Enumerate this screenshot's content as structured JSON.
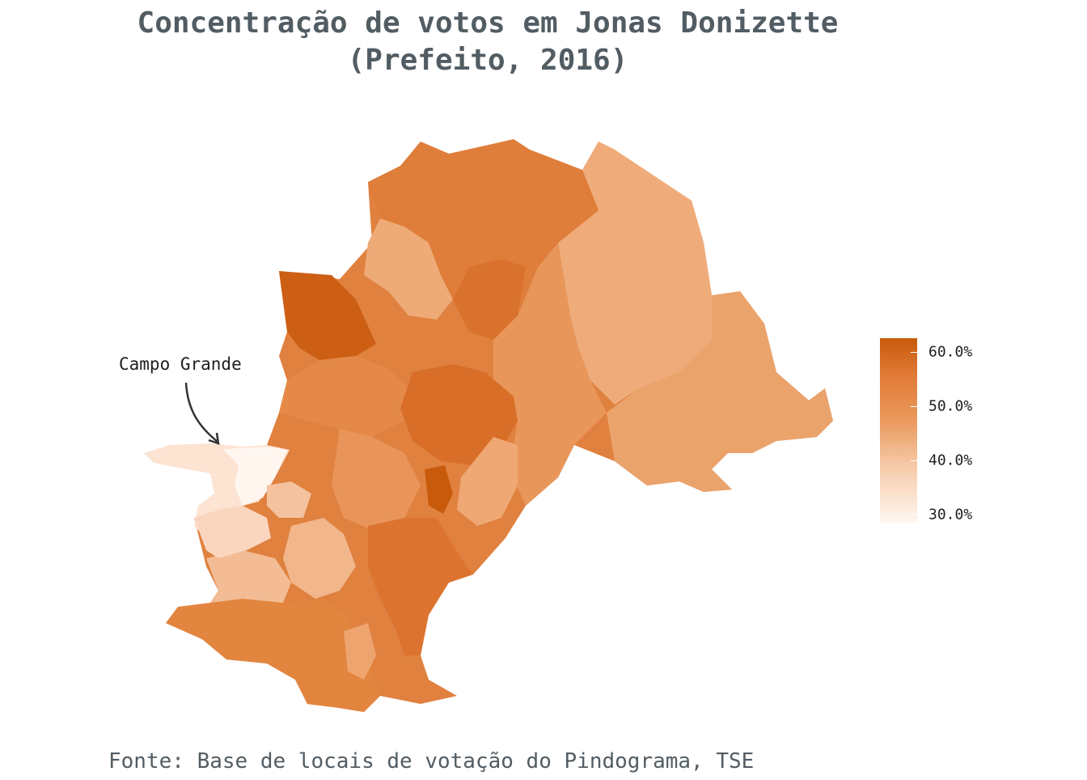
{
  "title": {
    "line1": "Concentração de votos em Jonas Donizette",
    "line2": "(Prefeito, 2016)"
  },
  "annotation": {
    "label": "Campo Grande"
  },
  "legend": {
    "labels": [
      "60.0%",
      "50.0%",
      "40.0%",
      "30.0%"
    ],
    "values": [
      0.6,
      0.5,
      0.4,
      0.3
    ],
    "range": [
      0.285,
      0.625
    ],
    "colors": {
      "high": "#c85a0c",
      "mid_high": "#e07a36",
      "mid": "#ea9a5e",
      "mid_low": "#f6cbaa",
      "low": "#fff7f2"
    }
  },
  "map": {
    "regions": [
      {
        "name": "north",
        "value": 0.52
      },
      {
        "name": "northeast",
        "value": 0.44
      },
      {
        "name": "east",
        "value": 0.46
      },
      {
        "name": "center",
        "value": 0.55
      },
      {
        "name": "northwest-pocket",
        "value": 0.6
      },
      {
        "name": "center-east-pocket",
        "value": 0.59
      },
      {
        "name": "south",
        "value": 0.53
      },
      {
        "name": "southwest",
        "value": 0.52
      },
      {
        "name": "campo-grande",
        "value": 0.31
      },
      {
        "name": "west-transition",
        "value": 0.39
      }
    ]
  },
  "caption": "Fonte: Base de locais de votação do Pindograma, TSE"
}
